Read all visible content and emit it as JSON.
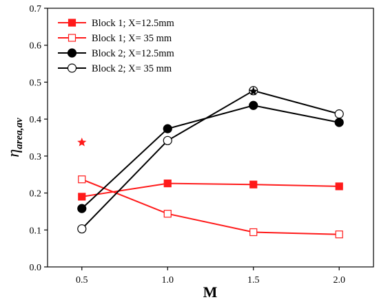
{
  "chart_data": {
    "type": "line",
    "xlabel": "M",
    "ylabel_main": "η",
    "ylabel_sub": "area,av",
    "x": [
      0.5,
      1.0,
      1.5,
      2.0
    ],
    "x_tick_labels": [
      "0.5",
      "1.0",
      "1.5",
      "2.0"
    ],
    "xlim": [
      0.3,
      2.2
    ],
    "ylim": [
      0.0,
      0.7
    ],
    "y_tick_labels": [
      "0.0",
      "0.1",
      "0.2",
      "0.3",
      "0.4",
      "0.5",
      "0.6",
      "0.7"
    ],
    "grid": false,
    "legend_position": "top-left",
    "series": [
      {
        "name": "Block 1; X=12.5mm",
        "color": "#ff1a1a",
        "marker": "square-filled",
        "values": [
          0.19,
          0.226,
          0.223,
          0.218
        ]
      },
      {
        "name": "Block 1; X= 35 mm",
        "color": "#ff1a1a",
        "marker": "square-open",
        "values": [
          0.237,
          0.144,
          0.094,
          0.088
        ]
      },
      {
        "name": "Block 2; X=12.5mm",
        "color": "#000000",
        "marker": "circle-filled",
        "values": [
          0.158,
          0.374,
          0.437,
          0.391
        ]
      },
      {
        "name": "Block 2; X= 35 mm",
        "color": "#000000",
        "marker": "circle-open",
        "values": [
          0.103,
          0.342,
          0.477,
          0.414
        ]
      }
    ],
    "star_markers": [
      {
        "x": 0.5,
        "y": 0.337,
        "color": "#ff1a1a"
      },
      {
        "x": 1.5,
        "y": 0.475,
        "color": "#000000"
      }
    ]
  }
}
